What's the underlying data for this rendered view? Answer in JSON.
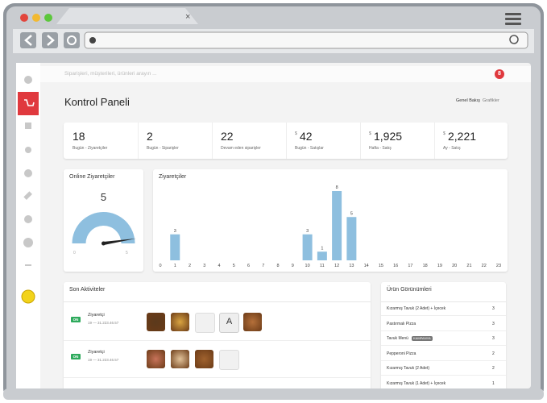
{
  "search_placeholder": "Siparişleri, müşterileri, ürünleri arayın ...",
  "notification_count": "8",
  "title": "Kontrol Paneli",
  "view_tabs": [
    "Genel Bakış",
    "Grafikler"
  ],
  "stats": [
    {
      "value": "18",
      "label": "Bugün - Ziyaretçiler"
    },
    {
      "value": "2",
      "label": "Bugün - Siparişler"
    },
    {
      "value": "22",
      "label": "Devam eden siparişler"
    },
    {
      "prefix": "$",
      "value": "42",
      "label": "Bugün - Satışlar"
    },
    {
      "prefix": "$",
      "value": "1,925",
      "label": "Hafta - Satış"
    },
    {
      "prefix": "$",
      "value": "2,221",
      "label": "Ay - Satış"
    }
  ],
  "online_visitors": {
    "title": "Online Ziyaretçiler",
    "value": 5,
    "min": 0,
    "max": 5,
    "color": "#8ebfdf"
  },
  "visitors_chart": {
    "type": "bar",
    "title": "Ziyaretçiler",
    "x": [
      0,
      1,
      2,
      3,
      4,
      5,
      6,
      7,
      8,
      9,
      10,
      11,
      12,
      13,
      14,
      15,
      16,
      17,
      18,
      19,
      20,
      21,
      22,
      23
    ],
    "values": [
      0,
      3,
      0,
      0,
      0,
      0,
      0,
      0,
      0,
      0,
      3,
      1,
      8,
      5,
      0,
      0,
      0,
      0,
      0,
      0,
      0,
      0,
      0,
      0
    ],
    "ylim": [
      0,
      8
    ],
    "color": "#8ebfdf"
  },
  "activities": {
    "title": "Son Aktiviteler",
    "items": [
      {
        "status": "ON",
        "type": "Ziyaretçi",
        "detail": "19 — 31.223.46.57",
        "thumb_letter": "A"
      },
      {
        "status": "ON",
        "type": "Ziyaretçi",
        "detail": "19 — 31.223.46.57"
      }
    ]
  },
  "product_views": {
    "title": "Ürün Görünümleri",
    "rows": [
      {
        "name": "Kızarmış Tavuk (2 Adet) + İçecek",
        "count": 3
      },
      {
        "name": "Pastırmalı Pizza",
        "count": 3
      },
      {
        "name": "Tavuk Menü",
        "tag": "KAMPANYA",
        "count": 3
      },
      {
        "name": "Pepperoni Pizza",
        "count": 2
      },
      {
        "name": "Kızarmış Tavuk (2 Adet)",
        "count": 2
      },
      {
        "name": "Kızarmış Tavuk (1 Adet) + İçecek",
        "count": 1
      }
    ]
  }
}
